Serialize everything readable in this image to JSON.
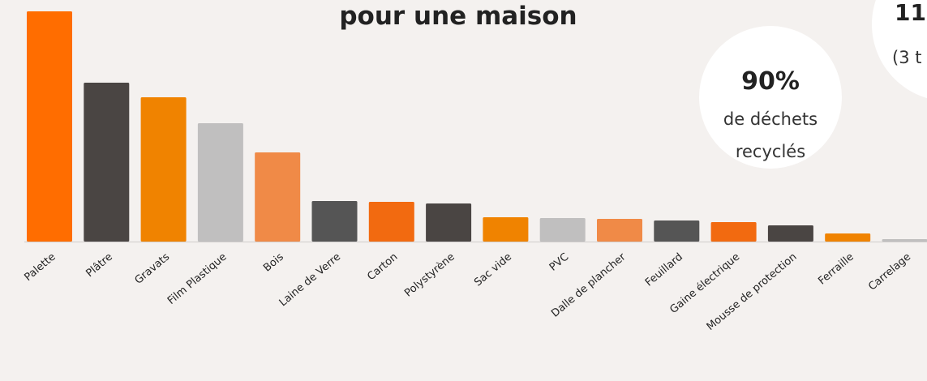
{
  "chart_data": {
    "type": "bar",
    "title": "pour une maison",
    "annotations": [
      "90%",
      "de déchets",
      "recyclés",
      "11",
      "(3 t"
    ],
    "categories": [
      "Palette",
      "Plâtre",
      "Gravats",
      "Film Plastique",
      "Bois",
      "Laine de Verre",
      "Carton",
      "Polystyrène",
      "Sac vide",
      "PVC",
      "Dalle de plancher",
      "Feuillard",
      "Gaine électrique",
      "Mousse de protection",
      "Ferraille",
      "Carrelage"
    ],
    "values": [
      284,
      196,
      178,
      146,
      110,
      50,
      49,
      47,
      30,
      29,
      28,
      26,
      24,
      20,
      10,
      3
    ],
    "colors": [
      "#ff6d00",
      "#4a4543",
      "#f08300",
      "#c0bfbf",
      "#f08a47",
      "#555555",
      "#f26a10",
      "#4a4543",
      "#f08300",
      "#c0bfbf",
      "#f08a47",
      "#555555",
      "#f26a10",
      "#4a4543",
      "#f08300",
      "#c0bfbf"
    ],
    "ylim": [
      0,
      284
    ]
  }
}
